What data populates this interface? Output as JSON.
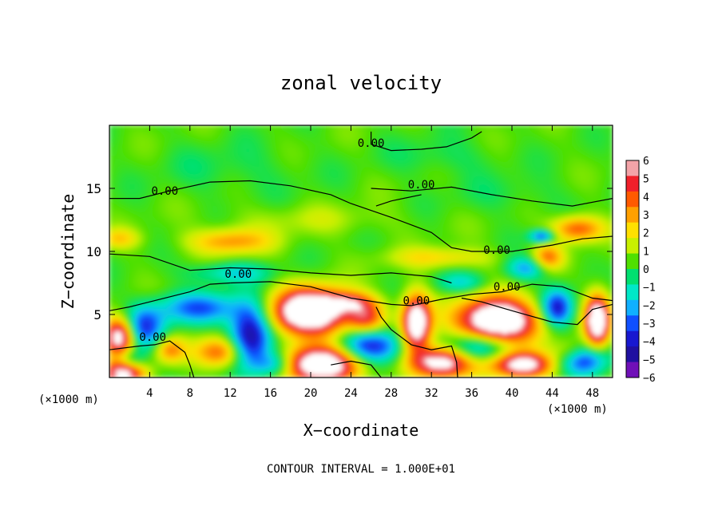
{
  "chart_data": {
    "type": "heatmap",
    "title": "zonal velocity",
    "xlabel": "X−coordinate",
    "ylabel": "Z−coordinate",
    "x_unit_left": "(×1000 m)",
    "x_unit_right": "(×1000 m)",
    "footer": "CONTOUR INTERVAL = 1.000E+01",
    "xlim": [
      0,
      50
    ],
    "ylim": [
      0,
      20
    ],
    "x_ticks": [
      4,
      8,
      12,
      16,
      20,
      24,
      28,
      32,
      36,
      40,
      44,
      48
    ],
    "y_ticks": [
      5,
      10,
      15
    ],
    "colorbar": {
      "min": -6,
      "max": 6,
      "ticks": [
        6,
        5,
        4,
        3,
        2,
        1,
        0,
        -1,
        -2,
        -3,
        -4,
        -5,
        -6
      ],
      "colors": [
        "#f3a3a8",
        "#f0202a",
        "#ff5a00",
        "#ffa000",
        "#ffe000",
        "#c8f000",
        "#50e000",
        "#00e070",
        "#00e8c8",
        "#10b0ff",
        "#1050ff",
        "#1818d0",
        "#2010a0",
        "#7010b8"
      ]
    },
    "contour_labels": [
      {
        "text": "0.00",
        "x": 26,
        "y": 18.3
      },
      {
        "text": "0.00",
        "x": 5.5,
        "y": 14.5
      },
      {
        "text": "0.00",
        "x": 31,
        "y": 15.0
      },
      {
        "text": "0.00",
        "x": 38.5,
        "y": 9.8
      },
      {
        "text": "0.00",
        "x": 12.8,
        "y": 7.9
      },
      {
        "text": "0.00",
        "x": 39.5,
        "y": 6.9
      },
      {
        "text": "0.00",
        "x": 30.5,
        "y": 5.8
      },
      {
        "text": "0.00",
        "x": 4.3,
        "y": 2.9
      }
    ],
    "blobs": [
      {
        "x": 20,
        "y": 5.2,
        "v": 9,
        "rx": 3.8,
        "ry": 1.8
      },
      {
        "x": 38.5,
        "y": 4.5,
        "v": 9,
        "rx": 3.8,
        "ry": 1.8
      },
      {
        "x": 30.5,
        "y": 4.3,
        "v": 8,
        "rx": 1.4,
        "ry": 2.2
      },
      {
        "x": 48.5,
        "y": 4.5,
        "v": 8,
        "rx": 1.2,
        "ry": 2.0
      },
      {
        "x": 21,
        "y": 1.0,
        "v": 8,
        "rx": 4.0,
        "ry": 1.4
      },
      {
        "x": 33,
        "y": 1.2,
        "v": 7,
        "rx": 3.0,
        "ry": 1.2
      },
      {
        "x": 41,
        "y": 1.0,
        "v": 7,
        "rx": 3.0,
        "ry": 1.0
      },
      {
        "x": 1.0,
        "y": 3.2,
        "v": 7,
        "rx": 1.5,
        "ry": 1.5
      },
      {
        "x": 1.5,
        "y": 0.4,
        "v": 7,
        "rx": 2.0,
        "ry": 1.0
      },
      {
        "x": 25.5,
        "y": 4.7,
        "v": 4,
        "rx": 1.8,
        "ry": 1.2
      },
      {
        "x": 11,
        "y": 2.0,
        "v": 4,
        "rx": 2.5,
        "ry": 1.2
      },
      {
        "x": 6,
        "y": 2.2,
        "v": 3,
        "rx": 1.5,
        "ry": 1.0
      },
      {
        "x": 46,
        "y": 2.0,
        "v": 3,
        "rx": 2.0,
        "ry": 1.0
      },
      {
        "x": 14,
        "y": 3.3,
        "v": -6,
        "rx": 2.0,
        "ry": 2.5
      },
      {
        "x": 9,
        "y": 5.5,
        "v": -3.5,
        "rx": 4.0,
        "ry": 1.2
      },
      {
        "x": 3.5,
        "y": 4.0,
        "v": -4,
        "rx": 2.0,
        "ry": 1.6
      },
      {
        "x": 26,
        "y": 2.5,
        "v": -5,
        "rx": 3.0,
        "ry": 1.4
      },
      {
        "x": 36.5,
        "y": 2.4,
        "v": -4,
        "rx": 3.0,
        "ry": 1.2
      },
      {
        "x": 44.5,
        "y": 5.5,
        "v": -5,
        "rx": 1.5,
        "ry": 1.4
      },
      {
        "x": 47,
        "y": 1.5,
        "v": -5,
        "rx": 2.5,
        "ry": 1.2
      },
      {
        "x": 2,
        "y": 1.2,
        "v": -3,
        "rx": 1.5,
        "ry": 1.0
      },
      {
        "x": 16.5,
        "y": 1.0,
        "v": -3.5,
        "rx": 2.0,
        "ry": 1.0
      },
      {
        "x": 12,
        "y": 8.3,
        "v": -2,
        "rx": 4.0,
        "ry": 0.8
      },
      {
        "x": 35,
        "y": 7.5,
        "v": -2,
        "rx": 2.5,
        "ry": 0.8
      },
      {
        "x": 41.5,
        "y": 8.7,
        "v": -3,
        "rx": 2.0,
        "ry": 0.9
      },
      {
        "x": 43,
        "y": 11.2,
        "v": -4,
        "rx": 1.2,
        "ry": 0.5
      },
      {
        "x": 46.5,
        "y": 11.8,
        "v": 4,
        "rx": 2.5,
        "ry": 1.0
      },
      {
        "x": 43.5,
        "y": 9.5,
        "v": 3.5,
        "rx": 1.5,
        "ry": 1.0
      },
      {
        "x": 12,
        "y": 10.8,
        "v": 3,
        "rx": 4.0,
        "ry": 1.0
      },
      {
        "x": 1,
        "y": 11.0,
        "v": 2,
        "rx": 2.0,
        "ry": 0.8
      },
      {
        "x": 33,
        "y": 9.5,
        "v": 2,
        "rx": 5.0,
        "ry": 0.8
      },
      {
        "x": 24,
        "y": 6.0,
        "v": 3,
        "rx": 2.5,
        "ry": 0.8
      },
      {
        "x": 12,
        "y": 16.5,
        "v": -0.6,
        "rx": 7.0,
        "ry": 2.0
      },
      {
        "x": 33,
        "y": 17.5,
        "v": -0.7,
        "rx": 5.0,
        "ry": 1.5
      },
      {
        "x": 40,
        "y": 14.5,
        "v": -0.5,
        "rx": 6.0,
        "ry": 1.5
      },
      {
        "x": 20,
        "y": 12.5,
        "v": 0.8,
        "rx": 8.0,
        "ry": 1.2
      }
    ],
    "contours": [
      [
        [
          0,
          14.2
        ],
        [
          3,
          14.2
        ],
        [
          6,
          14.8
        ],
        [
          10,
          15.5
        ],
        [
          14,
          15.6
        ],
        [
          18,
          15.2
        ],
        [
          22,
          14.5
        ],
        [
          24,
          13.8
        ],
        [
          28,
          12.7
        ],
        [
          32,
          11.5
        ],
        [
          34,
          10.3
        ],
        [
          36,
          10.0
        ],
        [
          40,
          10.0
        ],
        [
          44,
          10.5
        ],
        [
          47,
          11.0
        ],
        [
          50,
          11.2
        ]
      ],
      [
        [
          26,
          15.0
        ],
        [
          30,
          14.8
        ],
        [
          34,
          15.1
        ],
        [
          38,
          14.5
        ],
        [
          42,
          14.0
        ],
        [
          46,
          13.6
        ],
        [
          50,
          14.2
        ]
      ],
      [
        [
          26.5,
          13.6
        ],
        [
          28,
          14.0
        ],
        [
          31,
          14.5
        ]
      ],
      [
        [
          26,
          19.5
        ],
        [
          26,
          18.5
        ],
        [
          28,
          18.0
        ],
        [
          31,
          18.1
        ],
        [
          33.5,
          18.3
        ],
        [
          36,
          19.0
        ],
        [
          37,
          19.5
        ]
      ],
      [
        [
          0,
          9.8
        ],
        [
          4,
          9.6
        ],
        [
          8,
          8.5
        ],
        [
          12,
          8.7
        ],
        [
          16,
          8.6
        ],
        [
          20,
          8.3
        ],
        [
          24,
          8.1
        ],
        [
          28,
          8.3
        ],
        [
          32,
          8.0
        ],
        [
          34,
          7.5
        ]
      ],
      [
        [
          12,
          7.5
        ],
        [
          16,
          7.6
        ],
        [
          20,
          7.2
        ],
        [
          24,
          6.3
        ],
        [
          28,
          5.8
        ],
        [
          30,
          5.7
        ],
        [
          33,
          6.2
        ],
        [
          36,
          6.6
        ],
        [
          39,
          6.8
        ],
        [
          42,
          7.4
        ],
        [
          45,
          7.2
        ],
        [
          48,
          6.3
        ],
        [
          50,
          6.1
        ]
      ],
      [
        [
          0,
          5.3
        ],
        [
          2,
          5.6
        ],
        [
          4,
          6.0
        ],
        [
          8,
          6.8
        ],
        [
          10,
          7.4
        ],
        [
          12,
          7.5
        ]
      ],
      [
        [
          0,
          2.2
        ],
        [
          3,
          2.5
        ],
        [
          4.5,
          2.6
        ],
        [
          6,
          2.9
        ],
        [
          7.5,
          2.0
        ],
        [
          8,
          1.0
        ],
        [
          8.4,
          0
        ]
      ],
      [
        [
          26.5,
          5.6
        ],
        [
          27,
          4.8
        ],
        [
          28,
          3.8
        ],
        [
          30,
          2.6
        ],
        [
          32,
          2.2
        ],
        [
          34,
          2.5
        ],
        [
          34.5,
          1.2
        ],
        [
          34.6,
          0
        ]
      ],
      [
        [
          35,
          6.3
        ],
        [
          37,
          6.0
        ],
        [
          40,
          5.3
        ],
        [
          44,
          4.4
        ],
        [
          46.5,
          4.2
        ],
        [
          48,
          5.4
        ],
        [
          50,
          5.8
        ]
      ],
      [
        [
          22,
          1.0
        ],
        [
          24,
          1.3
        ],
        [
          26,
          1.0
        ],
        [
          27,
          0
        ]
      ]
    ]
  }
}
